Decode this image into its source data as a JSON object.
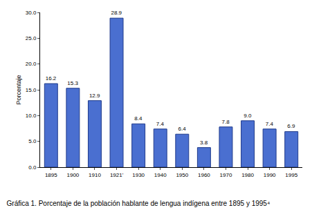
{
  "chart_data": {
    "type": "bar",
    "title": "Gráfica 1. Porcentaje de la población hablante de lengua indígena entre 1895 y 1995⁴",
    "y_label": "Porcentaje",
    "categories": [
      "1895",
      "1900",
      "1910",
      "1921'",
      "1930",
      "1940",
      "1950",
      "1960",
      "1970",
      "1980",
      "1990",
      "1995"
    ],
    "values": [
      16.2,
      15.3,
      12.9,
      28.9,
      8.4,
      7.4,
      6.4,
      3.8,
      7.8,
      9.0,
      7.4,
      6.9
    ],
    "value_labels": [
      "16.2",
      "15.3",
      "12.9",
      "28.9",
      "8.4",
      "7.4",
      "6.4",
      "3.8",
      "7.8",
      "9.0",
      "7.4",
      "6.9"
    ],
    "data_labels": true,
    "color": "#4a6fd0",
    "ylim": [
      0,
      30
    ],
    "yticks": [
      {
        "value": 0,
        "label": "0.0"
      },
      {
        "value": 5,
        "label": "5.0"
      },
      {
        "value": 10,
        "label": "10.0"
      },
      {
        "value": 15,
        "label": "15.0"
      },
      {
        "value": 20,
        "label": "20.0"
      },
      {
        "value": 25,
        "label": "25.0"
      },
      {
        "value": 30,
        "label": "30.0"
      }
    ],
    "grid": false
  }
}
